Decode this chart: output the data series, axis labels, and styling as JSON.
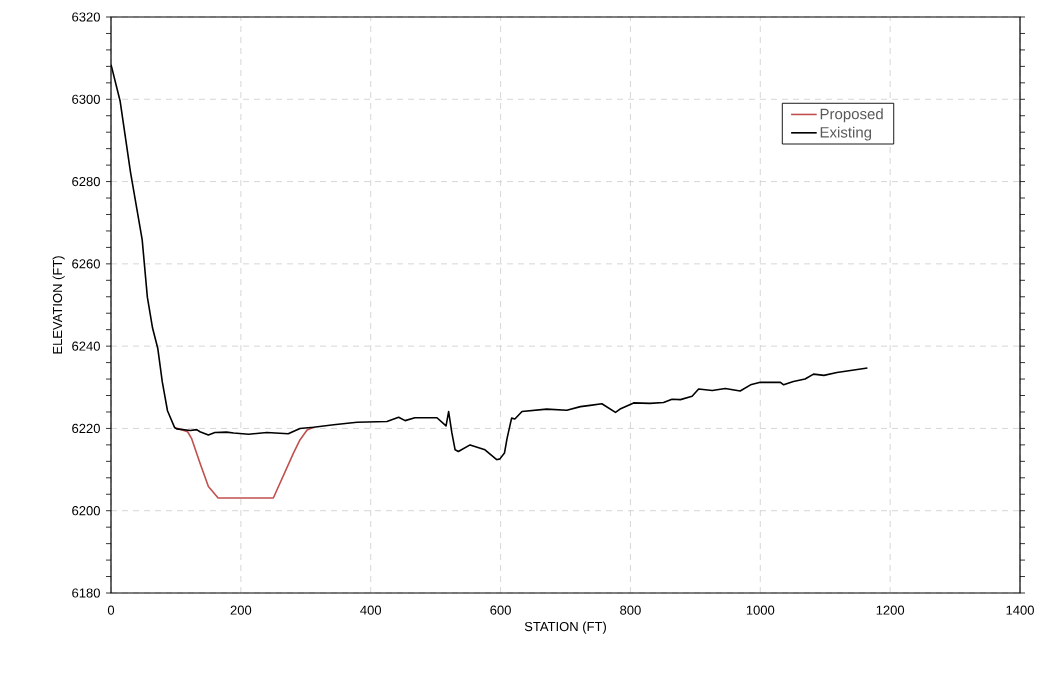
{
  "chart_data": {
    "type": "line",
    "xlabel": "STATION (FT)",
    "ylabel": "ELEVATION (FT)",
    "xlim": [
      0,
      1400
    ],
    "ylim": [
      6180,
      6320
    ],
    "xticks": [
      0,
      200,
      400,
      600,
      800,
      1000,
      1200,
      1400
    ],
    "yticks": [
      6180,
      6200,
      6220,
      6240,
      6260,
      6280,
      6300,
      6320
    ],
    "grid": true,
    "legend": "top right",
    "marker": "none",
    "line_style": "solid",
    "series": [
      {
        "name": "Proposed",
        "color": "#c0504d",
        "x": [
          98,
          118,
          124,
          137,
          150,
          165,
          250,
          281,
          291,
          302,
          312
        ],
        "values": [
          6220.2,
          6219.2,
          6217.6,
          6211.6,
          6205.9,
          6203.1,
          6203.1,
          6214.0,
          6217.2,
          6219.6,
          6220.3
        ]
      },
      {
        "name": "Existing",
        "color": "#000000",
        "x": [
          0,
          1,
          14,
          30,
          40,
          48,
          56,
          64,
          72,
          79,
          87,
          98,
          101,
          122,
          132,
          137,
          150,
          160,
          178,
          189,
          212,
          240,
          273,
          291,
          312,
          343,
          368,
          379,
          425,
          443,
          453,
          468,
          502,
          516,
          520,
          525,
          530,
          535,
          553,
          576,
          594,
          599,
          606,
          610,
          617,
          622,
          633,
          671,
          702,
          723,
          738,
          756,
          777,
          784,
          805,
          830,
          851,
          864,
          877,
          895,
          905,
          926,
          946,
          969,
          985,
          1000,
          1031,
          1036,
          1051,
          1069,
          1082,
          1098,
          1118,
          1139,
          1165
        ],
        "values": [
          6308.4,
          6307.8,
          6299.6,
          6282.3,
          6273.2,
          6265.9,
          6251.9,
          6244.4,
          6239.5,
          6231.3,
          6224.3,
          6220.2,
          6219.9,
          6219.5,
          6219.7,
          6219.2,
          6218.4,
          6219.0,
          6219.1,
          6218.9,
          6218.6,
          6219.0,
          6218.7,
          6220.0,
          6220.3,
          6220.9,
          6221.3,
          6221.5,
          6221.7,
          6222.7,
          6221.9,
          6222.6,
          6222.6,
          6220.6,
          6224.1,
          6218.9,
          6214.8,
          6214.4,
          6216.0,
          6214.8,
          6212.4,
          6212.6,
          6214.0,
          6217.6,
          6222.5,
          6222.3,
          6224.1,
          6224.7,
          6224.4,
          6225.3,
          6225.6,
          6226.0,
          6223.9,
          6224.7,
          6226.2,
          6226.1,
          6226.3,
          6227.1,
          6227.0,
          6227.8,
          6229.6,
          6229.2,
          6229.7,
          6229.1,
          6230.6,
          6231.2,
          6231.2,
          6230.6,
          6231.4,
          6232.0,
          6233.2,
          6232.9,
          6233.6,
          6234.1,
          6234.7
        ]
      }
    ]
  }
}
